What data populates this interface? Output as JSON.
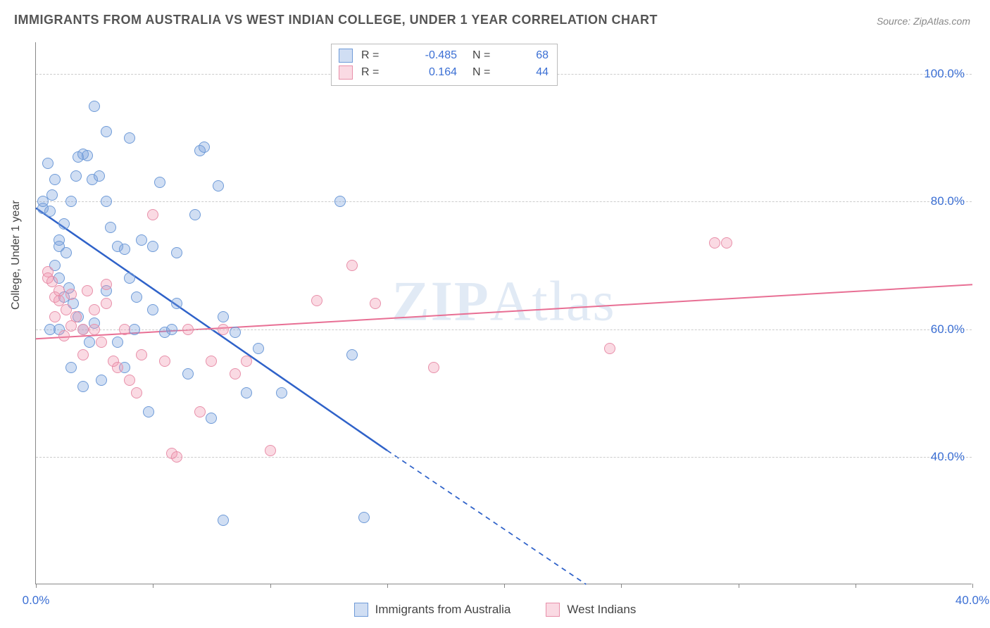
{
  "title": "IMMIGRANTS FROM AUSTRALIA VS WEST INDIAN COLLEGE, UNDER 1 YEAR CORRELATION CHART",
  "source": "Source: ZipAtlas.com",
  "watermark": "ZIPAtlas",
  "y_axis_label": "College, Under 1 year",
  "chart": {
    "type": "scatter",
    "xlim": [
      0,
      40
    ],
    "ylim": [
      20,
      105
    ],
    "x_ticks": [
      0,
      5,
      10,
      15,
      20,
      25,
      30,
      35,
      40
    ],
    "x_tick_labels": {
      "0": "0.0%",
      "40": "40.0%"
    },
    "y_gridlines": [
      40,
      60,
      80,
      100
    ],
    "y_tick_labels": {
      "40": "40.0%",
      "60": "60.0%",
      "80": "80.0%",
      "100": "100.0%"
    },
    "background_color": "#ffffff",
    "grid_color": "#cccccc",
    "marker_radius": 8,
    "marker_stroke_width": 1.5,
    "series": [
      {
        "id": "australia",
        "label": "Immigrants from Australia",
        "fill": "rgba(120,160,220,0.35)",
        "stroke": "#6f9bd8",
        "line_color": "#2f62c9",
        "line_width": 2.5,
        "R": "-0.485",
        "N": "68",
        "trend": {
          "x1": 0,
          "y1": 79,
          "x2_solid": 15,
          "y2_solid": 41,
          "x2_dash": 23.5,
          "y2_dash": 20
        },
        "points": [
          [
            0.3,
            79
          ],
          [
            0.3,
            80
          ],
          [
            0.6,
            78.5
          ],
          [
            0.7,
            81
          ],
          [
            0.5,
            86
          ],
          [
            0.8,
            83.5
          ],
          [
            1.0,
            74
          ],
          [
            1.2,
            76.5
          ],
          [
            1.0,
            73
          ],
          [
            1.3,
            72
          ],
          [
            1.5,
            80
          ],
          [
            1.7,
            84
          ],
          [
            1.8,
            87
          ],
          [
            2.0,
            87.5
          ],
          [
            2.2,
            87.2
          ],
          [
            2.4,
            83.5
          ],
          [
            2.5,
            95
          ],
          [
            3.0,
            91
          ],
          [
            0.8,
            70
          ],
          [
            1.0,
            68
          ],
          [
            1.2,
            65
          ],
          [
            1.4,
            66.5
          ],
          [
            1.6,
            64
          ],
          [
            1.8,
            62
          ],
          [
            2.0,
            60
          ],
          [
            2.3,
            58
          ],
          [
            2.5,
            61
          ],
          [
            2.7,
            84
          ],
          [
            3.0,
            80
          ],
          [
            3.2,
            76
          ],
          [
            3.5,
            73
          ],
          [
            3.8,
            72.5
          ],
          [
            4.0,
            68
          ],
          [
            4.3,
            65
          ],
          [
            4.5,
            74
          ],
          [
            5.0,
            73
          ],
          [
            5.3,
            83
          ],
          [
            5.5,
            59.5
          ],
          [
            5.8,
            60
          ],
          [
            6.0,
            64
          ],
          [
            6.5,
            53
          ],
          [
            7.0,
            88
          ],
          [
            7.2,
            88.5
          ],
          [
            7.5,
            46
          ],
          [
            7.8,
            82.5
          ],
          [
            6.8,
            78
          ],
          [
            5.0,
            63
          ],
          [
            4.2,
            60
          ],
          [
            3.5,
            58
          ],
          [
            3.0,
            66
          ],
          [
            2.8,
            52
          ],
          [
            8.0,
            62
          ],
          [
            8.5,
            59.5
          ],
          [
            9.0,
            50
          ],
          [
            9.5,
            57
          ],
          [
            10.5,
            50
          ],
          [
            13.0,
            80
          ],
          [
            13.5,
            56
          ],
          [
            14.0,
            30.5
          ],
          [
            8.0,
            30
          ],
          [
            2.0,
            51
          ],
          [
            1.0,
            60
          ],
          [
            1.5,
            54
          ],
          [
            0.6,
            60
          ],
          [
            3.8,
            54
          ],
          [
            4.8,
            47
          ],
          [
            6.0,
            72
          ],
          [
            4.0,
            90
          ]
        ]
      },
      {
        "id": "westindian",
        "label": "West Indians",
        "fill": "rgba(240,150,175,0.35)",
        "stroke": "#e890aa",
        "line_color": "#e86f94",
        "line_width": 2,
        "R": "0.164",
        "N": "44",
        "trend": {
          "x1": 0,
          "y1": 58.5,
          "x2_solid": 40,
          "y2_solid": 67,
          "x2_dash": 40,
          "y2_dash": 67
        },
        "points": [
          [
            0.5,
            69
          ],
          [
            0.5,
            68
          ],
          [
            0.7,
            67.5
          ],
          [
            0.8,
            65
          ],
          [
            1.0,
            66
          ],
          [
            1.0,
            64.5
          ],
          [
            1.3,
            63
          ],
          [
            1.5,
            65.5
          ],
          [
            1.5,
            60.5
          ],
          [
            1.7,
            62
          ],
          [
            2.0,
            60
          ],
          [
            2.2,
            66
          ],
          [
            2.5,
            60
          ],
          [
            2.8,
            58
          ],
          [
            3.0,
            64
          ],
          [
            3.3,
            55
          ],
          [
            3.5,
            54
          ],
          [
            3.8,
            60
          ],
          [
            4.0,
            52
          ],
          [
            4.3,
            50
          ],
          [
            4.5,
            56
          ],
          [
            5.0,
            78
          ],
          [
            5.5,
            55
          ],
          [
            5.8,
            40.5
          ],
          [
            6.0,
            40
          ],
          [
            6.5,
            60
          ],
          [
            7.0,
            47
          ],
          [
            7.5,
            55
          ],
          [
            8.0,
            60
          ],
          [
            8.5,
            53
          ],
          [
            9.0,
            55
          ],
          [
            10.0,
            41
          ],
          [
            12.0,
            64.5
          ],
          [
            13.5,
            70
          ],
          [
            14.5,
            64
          ],
          [
            17.0,
            54
          ],
          [
            24.5,
            57
          ],
          [
            29.0,
            73.5
          ],
          [
            29.5,
            73.5
          ],
          [
            2.0,
            56
          ],
          [
            2.5,
            63
          ],
          [
            3.0,
            67
          ],
          [
            1.2,
            59
          ],
          [
            0.8,
            62
          ]
        ]
      }
    ]
  },
  "legend_top": {
    "rows": [
      {
        "swatch_fill": "rgba(120,160,220,0.35)",
        "swatch_stroke": "#6f9bd8",
        "R_label": "R =",
        "R": "-0.485",
        "N_label": "N =",
        "N": "68"
      },
      {
        "swatch_fill": "rgba(240,150,175,0.35)",
        "swatch_stroke": "#e890aa",
        "R_label": "R =",
        "R": "0.164",
        "N_label": "N =",
        "N": "44"
      }
    ]
  },
  "legend_bottom": [
    {
      "swatch_fill": "rgba(120,160,220,0.35)",
      "swatch_stroke": "#6f9bd8",
      "label": "Immigrants from Australia"
    },
    {
      "swatch_fill": "rgba(240,150,175,0.35)",
      "swatch_stroke": "#e890aa",
      "label": "West Indians"
    }
  ]
}
